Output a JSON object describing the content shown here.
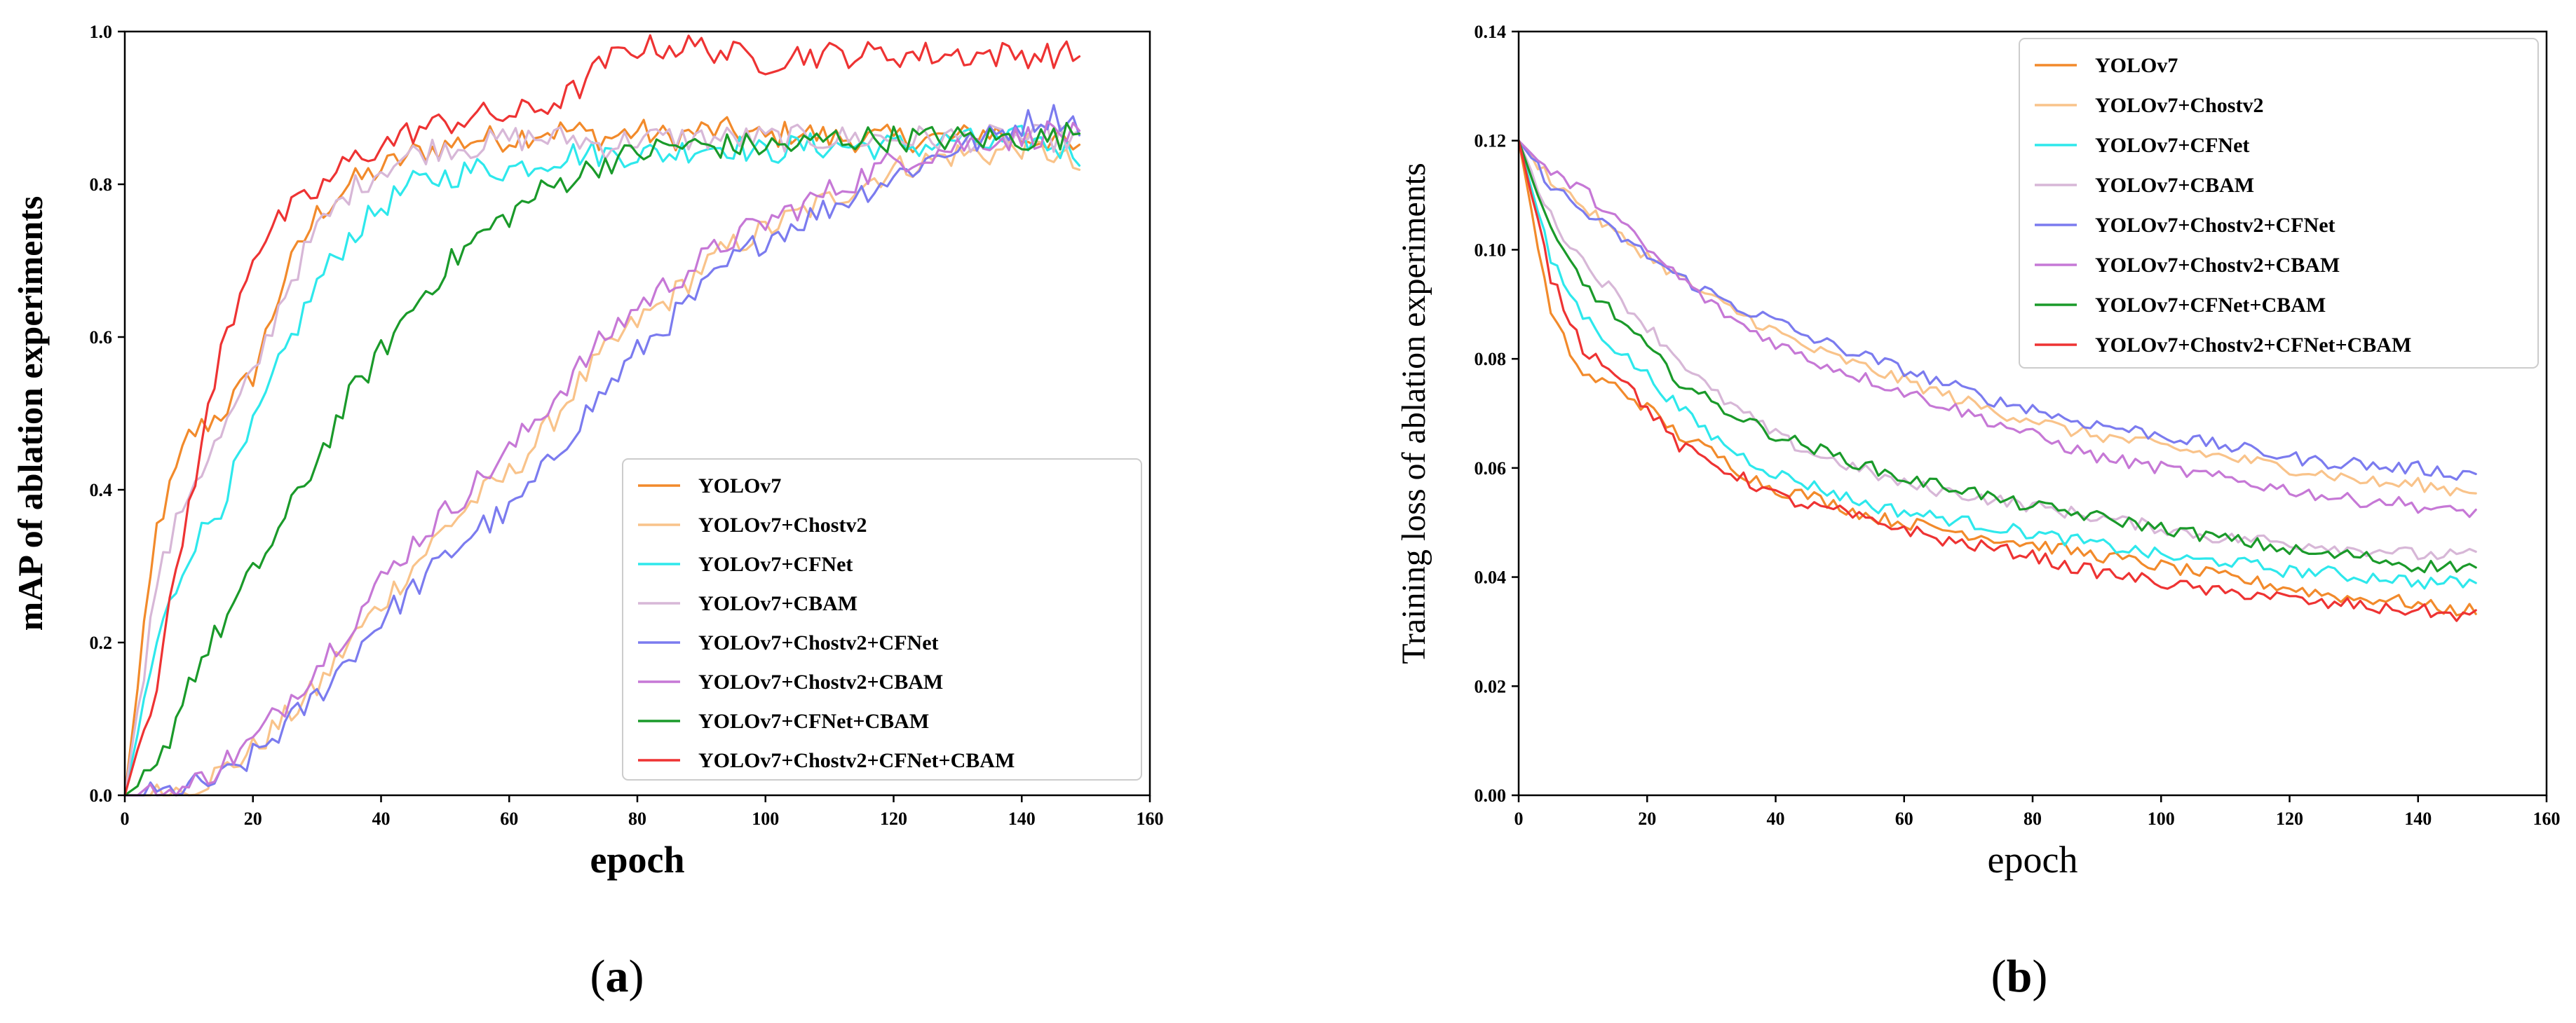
{
  "chart_data": [
    {
      "type": "line",
      "panel_label": "(a)",
      "panel_letter": "a",
      "title": "",
      "xlabel": "epoch",
      "ylabel": "mAP of ablation experiments",
      "xlim": [
        0,
        160
      ],
      "ylim": [
        0,
        1.0
      ],
      "xticks": [
        "0",
        "20",
        "40",
        "60",
        "80",
        "100",
        "120",
        "140",
        "160"
      ],
      "yticks": [
        "0.0",
        "0.2",
        "0.4",
        "0.6",
        "0.8",
        "1.0"
      ],
      "legend_position": "lower-right",
      "x": [
        0,
        5,
        10,
        15,
        20,
        25,
        30,
        35,
        40,
        45,
        50,
        55,
        60,
        65,
        70,
        75,
        80,
        85,
        90,
        95,
        100,
        105,
        110,
        115,
        120,
        125,
        130,
        135,
        140,
        145,
        149
      ],
      "series": [
        {
          "name": "YOLOv7",
          "color": "#f28a2b",
          "values": [
            0.0,
            0.35,
            0.47,
            0.5,
            0.55,
            0.68,
            0.76,
            0.8,
            0.82,
            0.84,
            0.85,
            0.86,
            0.86,
            0.87,
            0.87,
            0.86,
            0.87,
            0.86,
            0.87,
            0.87,
            0.86,
            0.87,
            0.86,
            0.86,
            0.86,
            0.86,
            0.86,
            0.87,
            0.86,
            0.86,
            0.84
          ]
        },
        {
          "name": "YOLOv7+Chostv2",
          "color": "#f9c38a",
          "values": [
            0.0,
            0.0,
            0.01,
            0.03,
            0.06,
            0.1,
            0.14,
            0.2,
            0.25,
            0.3,
            0.35,
            0.39,
            0.42,
            0.47,
            0.53,
            0.58,
            0.62,
            0.65,
            0.69,
            0.72,
            0.74,
            0.76,
            0.78,
            0.8,
            0.82,
            0.83,
            0.84,
            0.84,
            0.85,
            0.84,
            0.82
          ]
        },
        {
          "name": "YOLOv7+CFNet",
          "color": "#2ee8ec",
          "values": [
            0.0,
            0.2,
            0.32,
            0.38,
            0.48,
            0.58,
            0.67,
            0.73,
            0.77,
            0.8,
            0.81,
            0.82,
            0.82,
            0.83,
            0.84,
            0.84,
            0.84,
            0.84,
            0.85,
            0.85,
            0.84,
            0.85,
            0.85,
            0.85,
            0.85,
            0.85,
            0.86,
            0.85,
            0.86,
            0.85,
            0.84
          ]
        },
        {
          "name": "YOLOv7+CBAM",
          "color": "#d7b7d7",
          "values": [
            0.0,
            0.28,
            0.4,
            0.47,
            0.55,
            0.66,
            0.74,
            0.79,
            0.82,
            0.84,
            0.85,
            0.85,
            0.86,
            0.86,
            0.86,
            0.85,
            0.86,
            0.86,
            0.86,
            0.86,
            0.86,
            0.86,
            0.86,
            0.86,
            0.86,
            0.86,
            0.86,
            0.86,
            0.86,
            0.86,
            0.86
          ]
        },
        {
          "name": "YOLOv7+Chostv2+CFNet",
          "color": "#7b7bef",
          "values": [
            0.0,
            0.0,
            0.01,
            0.02,
            0.05,
            0.09,
            0.13,
            0.18,
            0.23,
            0.27,
            0.31,
            0.35,
            0.37,
            0.42,
            0.48,
            0.53,
            0.58,
            0.62,
            0.66,
            0.7,
            0.73,
            0.75,
            0.77,
            0.79,
            0.81,
            0.83,
            0.85,
            0.86,
            0.88,
            0.89,
            0.88
          ]
        },
        {
          "name": "YOLOv7+Chostv2+CBAM",
          "color": "#c678d6",
          "values": [
            0.0,
            0.0,
            0.01,
            0.04,
            0.07,
            0.12,
            0.17,
            0.22,
            0.28,
            0.33,
            0.37,
            0.41,
            0.45,
            0.5,
            0.55,
            0.6,
            0.64,
            0.67,
            0.7,
            0.73,
            0.75,
            0.77,
            0.79,
            0.81,
            0.83,
            0.84,
            0.85,
            0.86,
            0.86,
            0.87,
            0.86
          ]
        },
        {
          "name": "YOLOv7+CFNet+CBAM",
          "color": "#1a9a2a",
          "values": [
            0.0,
            0.03,
            0.15,
            0.22,
            0.29,
            0.36,
            0.44,
            0.52,
            0.58,
            0.64,
            0.69,
            0.73,
            0.76,
            0.79,
            0.81,
            0.83,
            0.84,
            0.85,
            0.85,
            0.85,
            0.85,
            0.85,
            0.86,
            0.86,
            0.86,
            0.86,
            0.86,
            0.86,
            0.86,
            0.86,
            0.87
          ]
        },
        {
          "name": "YOLOv7+Chostv2+CFNet+CBAM",
          "color": "#ee3333",
          "values": [
            0.0,
            0.15,
            0.38,
            0.58,
            0.71,
            0.76,
            0.79,
            0.83,
            0.85,
            0.87,
            0.88,
            0.89,
            0.89,
            0.9,
            0.92,
            0.96,
            0.98,
            0.98,
            0.98,
            0.97,
            0.96,
            0.97,
            0.97,
            0.97,
            0.97,
            0.97,
            0.97,
            0.97,
            0.97,
            0.97,
            0.97
          ]
        }
      ]
    },
    {
      "type": "line",
      "panel_label": "(b)",
      "panel_letter": "b",
      "title": "",
      "xlabel": "epoch",
      "ylabel": "Training loss of ablation experiments",
      "xlim": [
        0,
        160
      ],
      "ylim": [
        0,
        0.14
      ],
      "xticks": [
        "0",
        "20",
        "40",
        "60",
        "80",
        "100",
        "120",
        "140",
        "160"
      ],
      "yticks": [
        "0.00",
        "0.02",
        "0.04",
        "0.06",
        "0.08",
        "0.10",
        "0.12",
        "0.14"
      ],
      "legend_position": "top-right",
      "x": [
        0,
        5,
        10,
        15,
        20,
        25,
        30,
        35,
        40,
        45,
        50,
        55,
        60,
        65,
        70,
        75,
        80,
        85,
        90,
        95,
        100,
        105,
        110,
        115,
        120,
        125,
        130,
        135,
        140,
        145,
        149
      ],
      "series": [
        {
          "name": "YOLOv7",
          "color": "#f28a2b",
          "values": [
            0.12,
            0.088,
            0.077,
            0.075,
            0.071,
            0.066,
            0.063,
            0.059,
            0.056,
            0.055,
            0.053,
            0.051,
            0.05,
            0.049,
            0.048,
            0.047,
            0.046,
            0.045,
            0.044,
            0.043,
            0.042,
            0.041,
            0.04,
            0.039,
            0.038,
            0.037,
            0.036,
            0.036,
            0.035,
            0.034,
            0.034
          ]
        },
        {
          "name": "YOLOv7+Chostv2",
          "color": "#f9c38a",
          "values": [
            0.12,
            0.113,
            0.108,
            0.103,
            0.099,
            0.095,
            0.091,
            0.088,
            0.085,
            0.082,
            0.08,
            0.078,
            0.076,
            0.074,
            0.072,
            0.07,
            0.069,
            0.067,
            0.066,
            0.065,
            0.064,
            0.063,
            0.062,
            0.061,
            0.06,
            0.059,
            0.058,
            0.057,
            0.057,
            0.056,
            0.056
          ]
        },
        {
          "name": "YOLOv7+CFNet",
          "color": "#2ee8ec",
          "values": [
            0.12,
            0.098,
            0.088,
            0.082,
            0.077,
            0.071,
            0.066,
            0.062,
            0.059,
            0.057,
            0.055,
            0.053,
            0.052,
            0.051,
            0.05,
            0.049,
            0.048,
            0.047,
            0.046,
            0.045,
            0.044,
            0.043,
            0.043,
            0.042,
            0.041,
            0.041,
            0.04,
            0.04,
            0.039,
            0.039,
            0.039
          ]
        },
        {
          "name": "YOLOv7+CBAM",
          "color": "#d7b7d7",
          "values": [
            0.12,
            0.106,
            0.098,
            0.092,
            0.086,
            0.08,
            0.074,
            0.07,
            0.066,
            0.063,
            0.061,
            0.059,
            0.057,
            0.056,
            0.055,
            0.054,
            0.053,
            0.052,
            0.051,
            0.05,
            0.049,
            0.048,
            0.047,
            0.047,
            0.046,
            0.046,
            0.045,
            0.045,
            0.044,
            0.044,
            0.044
          ]
        },
        {
          "name": "YOLOv7+Chostv2+CFNet",
          "color": "#7b7bef",
          "values": [
            0.12,
            0.112,
            0.107,
            0.103,
            0.099,
            0.095,
            0.092,
            0.089,
            0.087,
            0.084,
            0.082,
            0.08,
            0.078,
            0.076,
            0.074,
            0.072,
            0.071,
            0.069,
            0.068,
            0.067,
            0.066,
            0.065,
            0.064,
            0.063,
            0.062,
            0.061,
            0.061,
            0.06,
            0.06,
            0.059,
            0.059
          ]
        },
        {
          "name": "YOLOv7+Chostv2+CBAM",
          "color": "#c678d6",
          "values": [
            0.12,
            0.114,
            0.111,
            0.106,
            0.1,
            0.095,
            0.09,
            0.086,
            0.083,
            0.08,
            0.078,
            0.076,
            0.074,
            0.072,
            0.07,
            0.068,
            0.066,
            0.064,
            0.062,
            0.061,
            0.06,
            0.059,
            0.058,
            0.057,
            0.056,
            0.055,
            0.054,
            0.054,
            0.053,
            0.052,
            0.052
          ]
        },
        {
          "name": "YOLOv7+CFNet+CBAM",
          "color": "#1a9a2a",
          "values": [
            0.12,
            0.103,
            0.094,
            0.088,
            0.082,
            0.076,
            0.072,
            0.069,
            0.066,
            0.064,
            0.062,
            0.06,
            0.058,
            0.057,
            0.056,
            0.054,
            0.053,
            0.052,
            0.051,
            0.05,
            0.049,
            0.048,
            0.047,
            0.046,
            0.045,
            0.044,
            0.044,
            0.043,
            0.042,
            0.042,
            0.042
          ]
        },
        {
          "name": "YOLOv7+Chostv2+CFNet+CBAM",
          "color": "#ee3333",
          "values": [
            0.12,
            0.095,
            0.082,
            0.078,
            0.071,
            0.064,
            0.061,
            0.058,
            0.055,
            0.053,
            0.052,
            0.05,
            0.049,
            0.047,
            0.046,
            0.045,
            0.044,
            0.042,
            0.041,
            0.04,
            0.039,
            0.038,
            0.037,
            0.037,
            0.036,
            0.035,
            0.035,
            0.034,
            0.034,
            0.033,
            0.033
          ]
        }
      ]
    }
  ]
}
